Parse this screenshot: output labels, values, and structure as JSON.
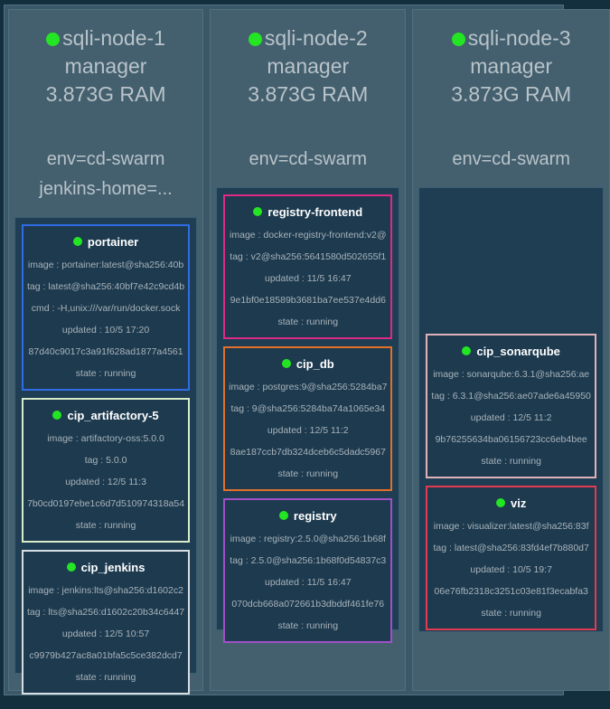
{
  "colors": {
    "page_bg": "#132e3c",
    "panel_bg": "#3b5868",
    "column_bg": "#44606f",
    "subpanel_bg": "#1f3e53",
    "tile_bg": "#1d3a4f",
    "status_green": "#23e523",
    "header_text": "#b9c3c9",
    "body_text": "#a9b3ba",
    "title_text": "#ffffff"
  },
  "nodes": [
    {
      "name": "sqli-node-1",
      "role": "manager",
      "ram": "3.873G RAM",
      "labels": [
        "env=cd-swarm",
        "jenkins-home=..."
      ],
      "containers": [
        {
          "name": "portainer",
          "border_color": "#2f6ce4",
          "image_line": "image : portainer:latest@sha256:40b",
          "tag_line": "tag : latest@sha256:40bf7e42c9cd4b",
          "cmd_line": "cmd : -H,unix:///var/run/docker.sock",
          "updated_line": "updated : 10/5 17:20",
          "id_line": "87d40c9017c3a91f628ad1877a4561",
          "state_line": "state : running"
        },
        {
          "name": "cip_artifactory-5",
          "border_color": "#d8ecca",
          "image_line": "image : artifactory-oss:5.0.0",
          "tag_line": "tag : 5.0.0",
          "updated_line": "updated : 12/5 11:3",
          "id_line": "7b0cd0197ebe1c6d7d510974318a54",
          "state_line": "state : running"
        },
        {
          "name": "cip_jenkins",
          "border_color": "#d7dee2",
          "image_line": "image : jenkins:lts@sha256:d1602c2",
          "tag_line": "tag : lts@sha256:d1602c20b34c6447",
          "updated_line": "updated : 12/5 10:57",
          "id_line": "c9979b427ac8a01bfa5c5ce382dcd7",
          "state_line": "state : running"
        }
      ]
    },
    {
      "name": "sqli-node-2",
      "role": "manager",
      "ram": "3.873G RAM",
      "labels": [
        "env=cd-swarm"
      ],
      "containers": [
        {
          "name": "registry-frontend",
          "border_color": "#de2a85",
          "image_line": "image : docker-registry-frontend:v2@",
          "tag_line": "tag : v2@sha256:5641580d502655f1",
          "updated_line": "updated : 11/5 16:47",
          "id_line": "9e1bf0e18589b3681ba7ee537e4dd6",
          "state_line": "state : running"
        },
        {
          "name": "cip_db",
          "border_color": "#e2702a",
          "image_line": "image : postgres:9@sha256:5284ba7",
          "tag_line": "tag : 9@sha256:5284ba74a1065e34",
          "updated_line": "updated : 12/5 11:2",
          "id_line": "8ae187ccb7db324dceb6c5dadc5967",
          "state_line": "state : running"
        },
        {
          "name": "registry",
          "border_color": "#a150c8",
          "image_line": "image : registry:2.5.0@sha256:1b68f",
          "tag_line": "tag : 2.5.0@sha256:1b68f0d54837c3",
          "updated_line": "updated : 11/5 16:47",
          "id_line": "070dcb668a072661b3dbddf461fe76",
          "state_line": "state : running"
        }
      ]
    },
    {
      "name": "sqli-node-3",
      "role": "manager",
      "ram": "3.873G RAM",
      "labels": [
        "env=cd-swarm"
      ],
      "containers": [
        {
          "name": "cip_sonarqube",
          "border_color": "#dfb2ba",
          "image_line": "image : sonarqube:6.3.1@sha256:ae",
          "tag_line": "tag : 6.3.1@sha256:ae07ade6a45950",
          "updated_line": "updated : 12/5 11:2",
          "id_line": "9b76255634ba06156723cc6eb4bee",
          "state_line": "state : running"
        },
        {
          "name": "viz",
          "border_color": "#e23a50",
          "image_line": "image : visualizer:latest@sha256:83f",
          "tag_line": "tag : latest@sha256:83fd4ef7b880d7",
          "updated_line": "updated : 10/5 19:7",
          "id_line": "06e76fb2318c3251c03e81f3ecabfa3",
          "state_line": "state : running"
        }
      ]
    }
  ]
}
